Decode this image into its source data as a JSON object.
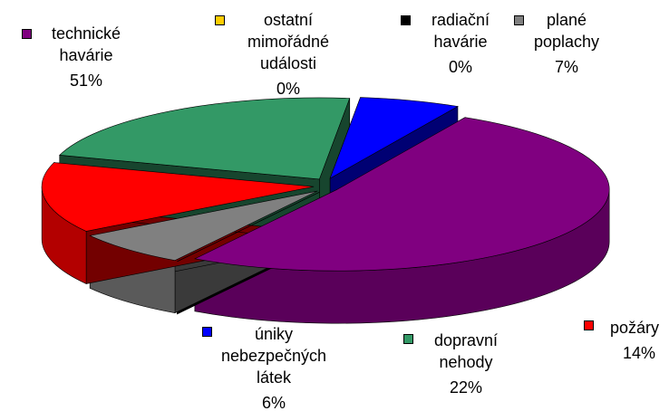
{
  "chart_data": {
    "type": "pie3d",
    "categories": [
      "technické havárie",
      "ostatní mimořádné události",
      "radiační havárie",
      "plané poplachy",
      "požáry",
      "dopravní nehody",
      "úniky nebezpečných látek"
    ],
    "values": [
      51,
      0,
      0,
      7,
      14,
      22,
      6
    ],
    "value_labels": [
      "51%",
      "0%",
      "0%",
      "7%",
      "14%",
      "22%",
      "6%"
    ],
    "colors": [
      "#800080",
      "#ffcc00",
      "#000000",
      "#808080",
      "#ff0000",
      "#339966",
      "#0000ff"
    ]
  }
}
